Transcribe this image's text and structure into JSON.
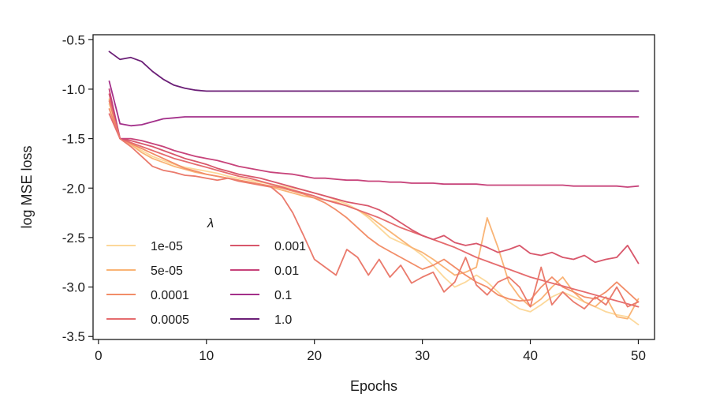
{
  "chart_data": {
    "type": "line",
    "title": "",
    "xlabel": "Epochs",
    "ylabel": "log MSE loss",
    "xlim": [
      -0.5,
      51.5
    ],
    "ylim": [
      -3.53,
      -0.45
    ],
    "xticks": [
      0,
      10,
      20,
      30,
      40,
      50
    ],
    "xtick_labels": [
      "0",
      "10",
      "20",
      "30",
      "40",
      "50"
    ],
    "yticks": [
      -0.5,
      -1.0,
      -1.5,
      -2.0,
      -2.5,
      -3.0,
      -3.5
    ],
    "ytick_labels": [
      "-0.5",
      "-1.0",
      "-1.5",
      "-2.0",
      "-2.5",
      "-3.0",
      "-3.5"
    ],
    "grid": false,
    "legend": {
      "title": "λ",
      "placement": "lower-left",
      "columns": 2
    },
    "x": [
      1,
      2,
      3,
      4,
      5,
      6,
      7,
      8,
      9,
      10,
      11,
      12,
      13,
      14,
      15,
      16,
      17,
      18,
      19,
      20,
      21,
      22,
      23,
      24,
      25,
      26,
      27,
      28,
      29,
      30,
      31,
      32,
      33,
      34,
      35,
      36,
      37,
      38,
      39,
      40,
      41,
      42,
      43,
      44,
      45,
      46,
      47,
      48,
      49,
      50
    ],
    "series": [
      {
        "name": "1e-05",
        "color": "#fcd89a",
        "values": [
          -1.15,
          -1.5,
          -1.55,
          -1.62,
          -1.68,
          -1.72,
          -1.76,
          -1.79,
          -1.81,
          -1.83,
          -1.85,
          -1.88,
          -1.9,
          -1.92,
          -1.94,
          -1.96,
          -1.98,
          -2.0,
          -2.02,
          -2.05,
          -2.08,
          -2.12,
          -2.16,
          -2.22,
          -2.3,
          -2.4,
          -2.5,
          -2.55,
          -2.6,
          -2.68,
          -2.78,
          -2.9,
          -3.0,
          -2.95,
          -2.88,
          -2.95,
          -3.05,
          -3.15,
          -3.22,
          -3.25,
          -3.18,
          -3.1,
          -3.05,
          -3.1,
          -3.15,
          -3.2,
          -3.25,
          -3.28,
          -3.3,
          -3.38
        ]
      },
      {
        "name": "5e-05",
        "color": "#f9b476",
        "values": [
          -1.1,
          -1.5,
          -1.56,
          -1.64,
          -1.7,
          -1.74,
          -1.78,
          -1.81,
          -1.84,
          -1.86,
          -1.88,
          -1.9,
          -1.92,
          -1.94,
          -1.96,
          -1.99,
          -2.02,
          -2.05,
          -2.08,
          -2.1,
          -2.12,
          -2.14,
          -2.18,
          -2.22,
          -2.28,
          -2.36,
          -2.44,
          -2.52,
          -2.6,
          -2.65,
          -2.72,
          -2.8,
          -2.88,
          -2.85,
          -2.8,
          -2.3,
          -2.6,
          -2.95,
          -3.1,
          -3.2,
          -3.12,
          -3.0,
          -2.9,
          -3.05,
          -3.15,
          -3.2,
          -3.1,
          -3.3,
          -3.32,
          -3.12
        ]
      },
      {
        "name": "0.0001",
        "color": "#f28d68",
        "values": [
          -1.2,
          -1.5,
          -1.55,
          -1.6,
          -1.65,
          -1.7,
          -1.75,
          -1.8,
          -1.83,
          -1.86,
          -1.88,
          -1.9,
          -1.92,
          -1.94,
          -1.96,
          -1.98,
          -2.0,
          -2.03,
          -2.06,
          -2.1,
          -2.15,
          -2.22,
          -2.3,
          -2.4,
          -2.5,
          -2.58,
          -2.64,
          -2.7,
          -2.76,
          -2.82,
          -2.78,
          -2.72,
          -2.8,
          -2.88,
          -2.95,
          -3.0,
          -3.08,
          -3.12,
          -3.14,
          -3.13,
          -3.0,
          -2.9,
          -3.0,
          -3.05,
          -3.1,
          -3.12,
          -3.05,
          -2.95,
          -3.05,
          -3.15
        ]
      },
      {
        "name": "0.0005",
        "color": "#e56c6e",
        "values": [
          -1.25,
          -1.5,
          -1.54,
          -1.58,
          -1.62,
          -1.66,
          -1.7,
          -1.73,
          -1.76,
          -1.79,
          -1.82,
          -1.85,
          -1.88,
          -1.9,
          -1.93,
          -1.96,
          -1.99,
          -2.02,
          -2.05,
          -2.08,
          -2.12,
          -2.15,
          -2.18,
          -2.22,
          -2.26,
          -2.3,
          -2.35,
          -2.4,
          -2.44,
          -2.48,
          -2.52,
          -2.56,
          -2.6,
          -2.65,
          -2.7,
          -2.74,
          -2.78,
          -2.82,
          -2.86,
          -2.9,
          -2.93,
          -2.96,
          -2.99,
          -3.02,
          -3.05,
          -3.08,
          -3.11,
          -3.14,
          -3.17,
          -3.2
        ]
      },
      {
        "name": "0.001",
        "color": "#d8576b",
        "values": [
          -1.05,
          -1.5,
          -1.52,
          -1.55,
          -1.58,
          -1.62,
          -1.66,
          -1.7,
          -1.73,
          -1.76,
          -1.8,
          -1.83,
          -1.86,
          -1.88,
          -1.9,
          -1.93,
          -1.96,
          -1.99,
          -2.02,
          -2.05,
          -2.08,
          -2.11,
          -2.14,
          -2.16,
          -2.18,
          -2.22,
          -2.28,
          -2.35,
          -2.42,
          -2.48,
          -2.52,
          -2.48,
          -2.55,
          -2.58,
          -2.56,
          -2.6,
          -2.65,
          -2.62,
          -2.58,
          -2.66,
          -2.68,
          -2.65,
          -2.7,
          -2.72,
          -2.68,
          -2.75,
          -2.72,
          -2.7,
          -2.58,
          -2.76
        ]
      },
      {
        "name": "0.01",
        "color": "#c7437a",
        "values": [
          -1.0,
          -1.5,
          -1.5,
          -1.52,
          -1.55,
          -1.58,
          -1.62,
          -1.65,
          -1.68,
          -1.7,
          -1.72,
          -1.75,
          -1.78,
          -1.8,
          -1.82,
          -1.84,
          -1.85,
          -1.86,
          -1.88,
          -1.9,
          -1.9,
          -1.91,
          -1.92,
          -1.92,
          -1.93,
          -1.93,
          -1.94,
          -1.94,
          -1.95,
          -1.95,
          -1.95,
          -1.96,
          -1.96,
          -1.96,
          -1.96,
          -1.97,
          -1.97,
          -1.97,
          -1.97,
          -1.97,
          -1.97,
          -1.97,
          -1.97,
          -1.98,
          -1.98,
          -1.98,
          -1.98,
          -1.98,
          -1.99,
          -1.98
        ]
      },
      {
        "name": "0.1",
        "color": "#a3308a",
        "values": [
          -0.92,
          -1.35,
          -1.37,
          -1.36,
          -1.33,
          -1.3,
          -1.29,
          -1.28,
          -1.28,
          -1.28,
          -1.28,
          -1.28,
          -1.28,
          -1.28,
          -1.28,
          -1.28,
          -1.28,
          -1.28,
          -1.28,
          -1.28,
          -1.28,
          -1.28,
          -1.28,
          -1.28,
          -1.28,
          -1.28,
          -1.28,
          -1.28,
          -1.28,
          -1.28,
          -1.28,
          -1.28,
          -1.28,
          -1.28,
          -1.28,
          -1.28,
          -1.28,
          -1.28,
          -1.28,
          -1.28,
          -1.28,
          -1.28,
          -1.28,
          -1.28,
          -1.28,
          -1.28,
          -1.28,
          -1.28,
          -1.28,
          -1.28
        ]
      },
      {
        "name": "1.0",
        "color": "#6b1f77",
        "values": [
          -0.62,
          -0.7,
          -0.68,
          -0.72,
          -0.82,
          -0.9,
          -0.96,
          -0.99,
          -1.01,
          -1.02,
          -1.02,
          -1.02,
          -1.02,
          -1.02,
          -1.02,
          -1.02,
          -1.02,
          -1.02,
          -1.02,
          -1.02,
          -1.02,
          -1.02,
          -1.02,
          -1.02,
          -1.02,
          -1.02,
          -1.02,
          -1.02,
          -1.02,
          -1.02,
          -1.02,
          -1.02,
          -1.02,
          -1.02,
          -1.02,
          -1.02,
          -1.02,
          -1.02,
          -1.02,
          -1.02,
          -1.02,
          -1.02,
          -1.02,
          -1.02,
          -1.02,
          -1.02,
          -1.02,
          -1.02,
          -1.02,
          -1.02
        ]
      },
      {
        "name": "(unlabeled)",
        "color": "#ea7a6c",
        "values": [
          -1.12,
          -1.5,
          -1.58,
          -1.68,
          -1.78,
          -1.82,
          -1.84,
          -1.87,
          -1.88,
          -1.9,
          -1.92,
          -1.9,
          -1.93,
          -1.95,
          -1.97,
          -1.99,
          -2.08,
          -2.25,
          -2.48,
          -2.72,
          -2.8,
          -2.88,
          -2.62,
          -2.7,
          -2.88,
          -2.72,
          -2.9,
          -2.78,
          -2.96,
          -2.9,
          -2.85,
          -3.05,
          -2.95,
          -2.7,
          -2.98,
          -3.08,
          -2.95,
          -2.9,
          -3.0,
          -3.2,
          -2.8,
          -3.18,
          -3.05,
          -3.15,
          -3.22,
          -3.1,
          -3.18,
          -3.0,
          -3.2,
          -3.15
        ]
      }
    ]
  }
}
